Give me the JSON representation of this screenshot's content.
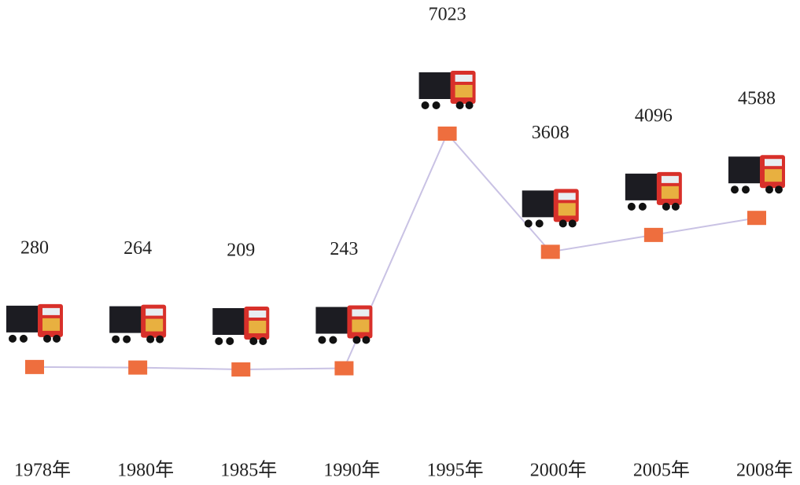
{
  "chart_data": {
    "type": "line",
    "categories": [
      "1978年",
      "1980年",
      "1985年",
      "1990年",
      "1995年",
      "2000年",
      "2005年",
      "2008年"
    ],
    "values": [
      280,
      264,
      209,
      243,
      7023,
      3608,
      4096,
      4588
    ],
    "color": "#c9c2e4",
    "marker_color": "#ee6e3e"
  }
}
